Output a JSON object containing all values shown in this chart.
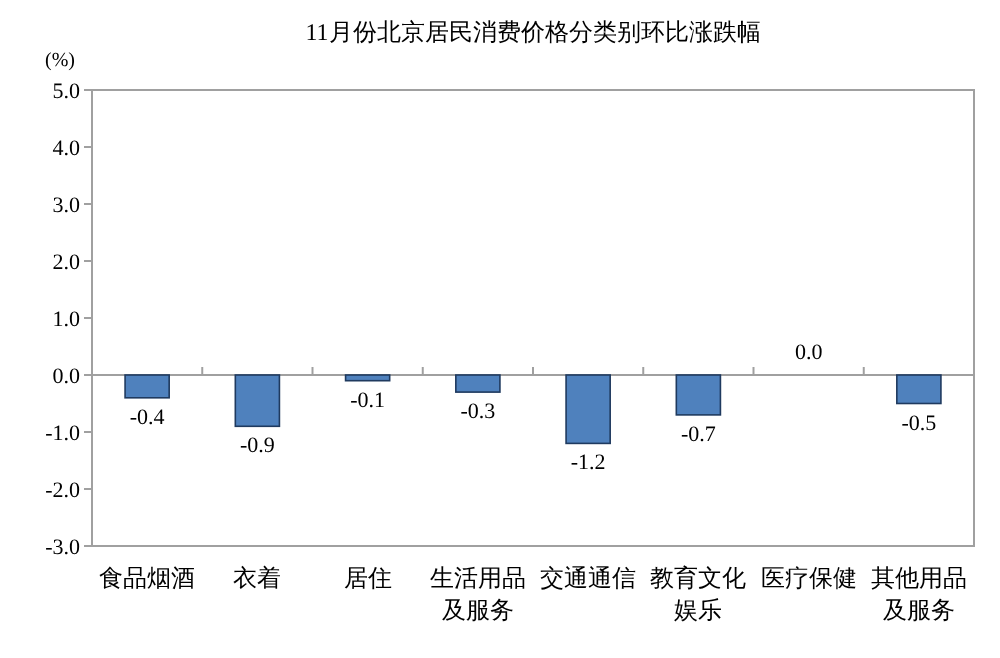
{
  "chart_data": {
    "type": "bar",
    "title": "11月份北京居民消费价格分类别环比涨跌幅",
    "ylabel": "(%)",
    "categories": [
      "食品烟酒",
      "衣着",
      "居住",
      "生活用品及服务",
      "交通通信",
      "教育文化娱乐",
      "医疗保健",
      "其他用品及服务"
    ],
    "values": [
      -0.4,
      -0.9,
      -0.1,
      -0.3,
      -1.2,
      -0.7,
      0.0,
      -0.5
    ],
    "color": "#4f81bd",
    "ylim": [
      -3.0,
      5.0
    ],
    "yticks": [
      {
        "value": 5,
        "label": "5.0"
      },
      {
        "value": 4,
        "label": "4.0"
      },
      {
        "value": 3,
        "label": "3.0"
      },
      {
        "value": 2,
        "label": "2.0"
      },
      {
        "value": 1,
        "label": "1.0"
      },
      {
        "value": 0,
        "label": "0.0"
      },
      {
        "value": -1,
        "label": "-1.0"
      },
      {
        "value": -2,
        "label": "-2.0"
      },
      {
        "value": -3,
        "label": "-3.0"
      }
    ],
    "value_labels": [
      "-0.4",
      "-0.9",
      "-0.1",
      "-0.3",
      "-1.2",
      "-0.7",
      "0.0",
      "-0.5"
    ]
  }
}
